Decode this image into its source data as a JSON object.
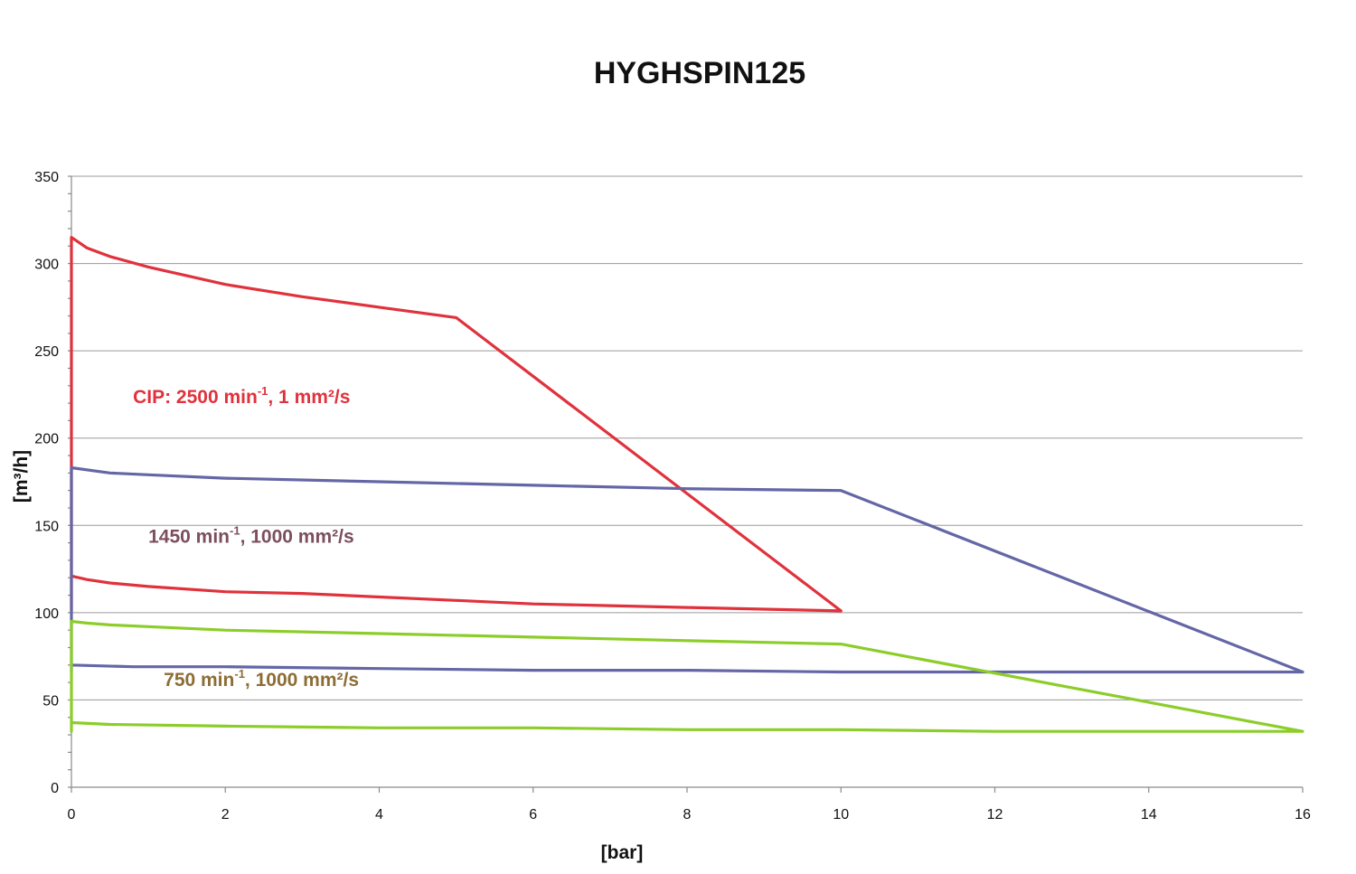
{
  "chart_data": {
    "type": "line",
    "title": "HYGHSPIN125",
    "xlabel": "[bar]",
    "ylabel": "[m³/h]",
    "xlim": [
      0,
      16
    ],
    "ylim": [
      0,
      350
    ],
    "xticks": [
      0,
      2,
      4,
      6,
      8,
      10,
      12,
      14,
      16
    ],
    "yticks": [
      0,
      50,
      100,
      150,
      200,
      250,
      300,
      350
    ],
    "grid": "horizontal",
    "series": [
      {
        "color": "#e0323c",
        "annotation": {
          "text": "CIP: 2500 min",
          "sup": "-1",
          "rest": ", 1 mm²/s",
          "at": [
            0.8,
            220
          ],
          "color": "#e0323c"
        },
        "x": [
          0,
          0,
          0.2,
          0.5,
          1,
          2,
          3,
          4,
          5,
          10,
          9,
          8,
          7,
          6,
          5,
          4,
          3,
          2,
          1,
          0.5,
          0.2,
          0,
          0
        ],
        "y": [
          101,
          315,
          309,
          304,
          298,
          288,
          281,
          275,
          269,
          101,
          102,
          103,
          104,
          105,
          107,
          109,
          111,
          112,
          115,
          117,
          119,
          121,
          101
        ]
      },
      {
        "color": "#6466a6",
        "annotation": {
          "text": "1450 min",
          "sup": "-1",
          "rest": ", 1000 mm²/s",
          "at": [
            1.0,
            140
          ],
          "color": "#7b4f5e"
        },
        "x": [
          0,
          0,
          0.5,
          1,
          2,
          4,
          6,
          8,
          10,
          16,
          12,
          10,
          8,
          6,
          4,
          2,
          0.8,
          0,
          0
        ],
        "y": [
          66,
          183,
          180,
          179,
          177,
          175,
          173,
          171,
          170,
          66,
          66,
          66,
          67,
          67,
          68,
          69,
          69,
          70,
          66
        ]
      },
      {
        "color": "#8ccd2a",
        "annotation": {
          "text": "750 min",
          "sup": "-1",
          "rest": ", 1000 mm²/s",
          "at": [
            1.2,
            58
          ],
          "color": "#8c6d35"
        },
        "x": [
          0,
          0,
          0.2,
          0.5,
          1,
          2,
          4,
          6,
          8,
          10,
          16,
          14,
          12,
          10,
          8,
          6,
          4,
          2,
          0.5,
          0,
          0
        ],
        "y": [
          32,
          95,
          94,
          93,
          92,
          90,
          88,
          86,
          84,
          82,
          32,
          32,
          32,
          33,
          33,
          34,
          34,
          35,
          36,
          37,
          32
        ]
      }
    ]
  }
}
